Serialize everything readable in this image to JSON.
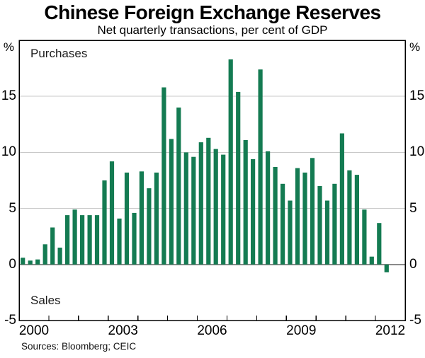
{
  "header": {
    "title": "Chinese Foreign Exchange Reserves",
    "subtitle": "Net quarterly transactions, per cent of GDP"
  },
  "footer": {
    "sources_note": "Sources: Bloomberg; CEIC"
  },
  "chart_data": {
    "type": "bar",
    "title": "Chinese Foreign Exchange Reserves",
    "subtitle": "Net quarterly transactions, per cent of GDP",
    "unit_label": "%",
    "region_labels": {
      "top": "Purchases",
      "bottom": "Sales"
    },
    "quarters": [
      "2000Q1",
      "2000Q2",
      "2000Q3",
      "2000Q4",
      "2001Q1",
      "2001Q2",
      "2001Q3",
      "2001Q4",
      "2002Q1",
      "2002Q2",
      "2002Q3",
      "2002Q4",
      "2003Q1",
      "2003Q2",
      "2003Q3",
      "2003Q4",
      "2004Q1",
      "2004Q2",
      "2004Q3",
      "2004Q4",
      "2005Q1",
      "2005Q2",
      "2005Q3",
      "2005Q4",
      "2006Q1",
      "2006Q2",
      "2006Q3",
      "2006Q4",
      "2007Q1",
      "2007Q2",
      "2007Q3",
      "2007Q4",
      "2008Q1",
      "2008Q2",
      "2008Q3",
      "2008Q4",
      "2009Q1",
      "2009Q2",
      "2009Q3",
      "2009Q4",
      "2010Q1",
      "2010Q2",
      "2010Q3",
      "2010Q4",
      "2011Q1",
      "2011Q2",
      "2011Q3",
      "2011Q4",
      "2012Q1",
      "2012Q2"
    ],
    "values": [
      0.6,
      0.35,
      0.45,
      1.8,
      3.3,
      1.5,
      4.4,
      4.9,
      4.4,
      4.4,
      4.4,
      7.5,
      9.2,
      4.1,
      8.2,
      4.6,
      8.3,
      6.8,
      8.2,
      15.8,
      11.2,
      14.0,
      10.0,
      9.6,
      10.9,
      11.3,
      10.3,
      9.8,
      18.3,
      15.4,
      11.1,
      9.4,
      17.4,
      10.1,
      8.7,
      7.2,
      5.7,
      8.6,
      8.2,
      9.5,
      7.0,
      5.7,
      7.2,
      11.7,
      8.4,
      8.0,
      4.9,
      0.7,
      3.7,
      -0.7
    ],
    "x_range": [
      2000,
      2013
    ],
    "xtick_labels": [
      "2000",
      "2003",
      "2006",
      "2009",
      "2012"
    ],
    "ylim": [
      -5,
      20
    ],
    "yticks": [
      15,
      10,
      5,
      0,
      -5
    ],
    "grid": "horizontal gridlines at 5, 10, 15; darker line at 0",
    "legend": "none",
    "colors": {
      "bar": "#147b52",
      "grid": "#c9c9c9",
      "zero_line": "#8a8a8a",
      "frame": "#000000"
    }
  }
}
